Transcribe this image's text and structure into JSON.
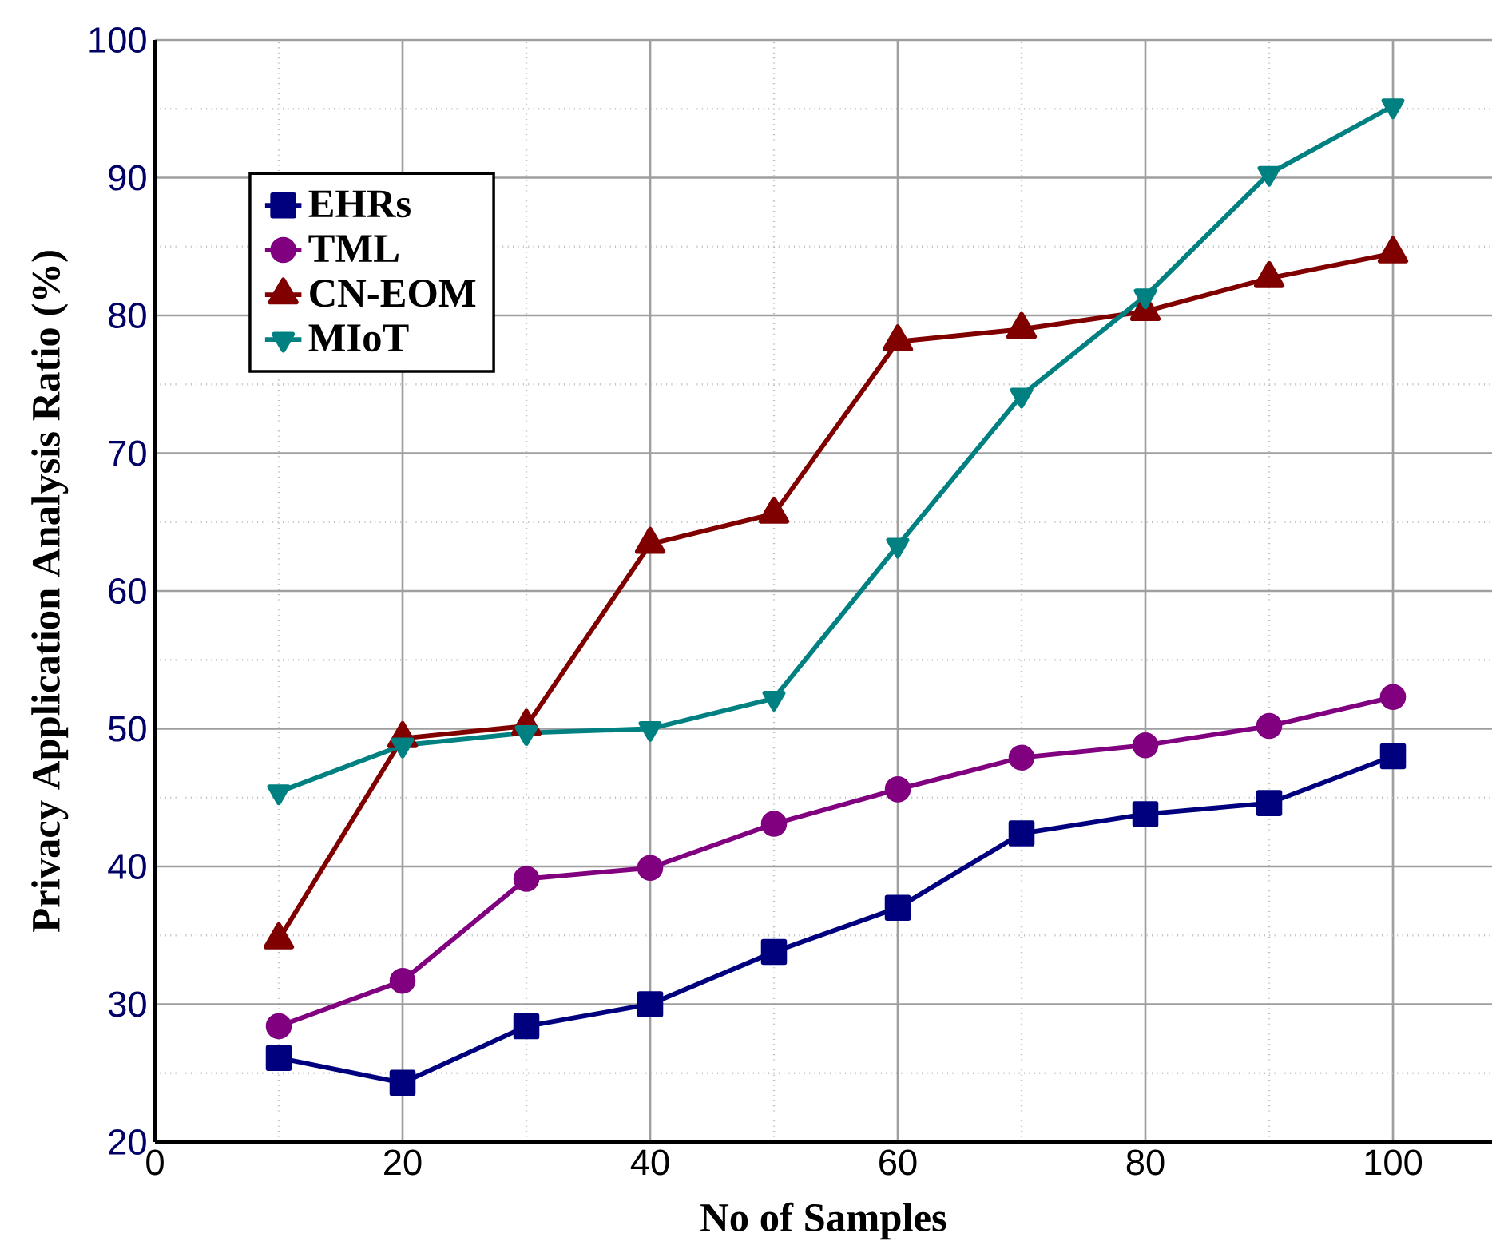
{
  "chart_data": {
    "type": "line",
    "xlabel": "No of Samples",
    "ylabel": "Privacy Application Analysis Ratio (%)",
    "x": [
      10,
      20,
      30,
      40,
      50,
      60,
      70,
      80,
      90,
      100
    ],
    "series": [
      {
        "name": "EHRs",
        "color": "#00007f",
        "marker": "square",
        "values": [
          26.1,
          24.3,
          28.4,
          30.0,
          33.8,
          37.0,
          42.4,
          43.8,
          44.6,
          48.0
        ]
      },
      {
        "name": "TML",
        "color": "#800080",
        "marker": "circle",
        "values": [
          28.4,
          31.7,
          39.1,
          39.9,
          43.1,
          45.6,
          47.9,
          48.8,
          50.2,
          52.3
        ]
      },
      {
        "name": "CN-EOM",
        "color": "#800000",
        "marker": "triangle",
        "values": [
          34.7,
          49.3,
          50.2,
          63.4,
          65.6,
          78.1,
          79.0,
          80.3,
          82.7,
          84.5
        ]
      },
      {
        "name": "MIoT",
        "color": "#008080",
        "marker": "triangle-down",
        "values": [
          45.4,
          48.8,
          49.7,
          50.0,
          52.2,
          63.3,
          74.2,
          81.4,
          90.3,
          95.2
        ]
      }
    ],
    "xlim": [
      0,
      108
    ],
    "ylim": [
      20,
      100
    ],
    "xticks": [
      0,
      20,
      40,
      60,
      80,
      100
    ],
    "yticks": [
      20,
      30,
      40,
      50,
      60,
      70,
      80,
      90,
      100
    ],
    "grid": true,
    "legend": "top left",
    "line_style": "solid"
  }
}
